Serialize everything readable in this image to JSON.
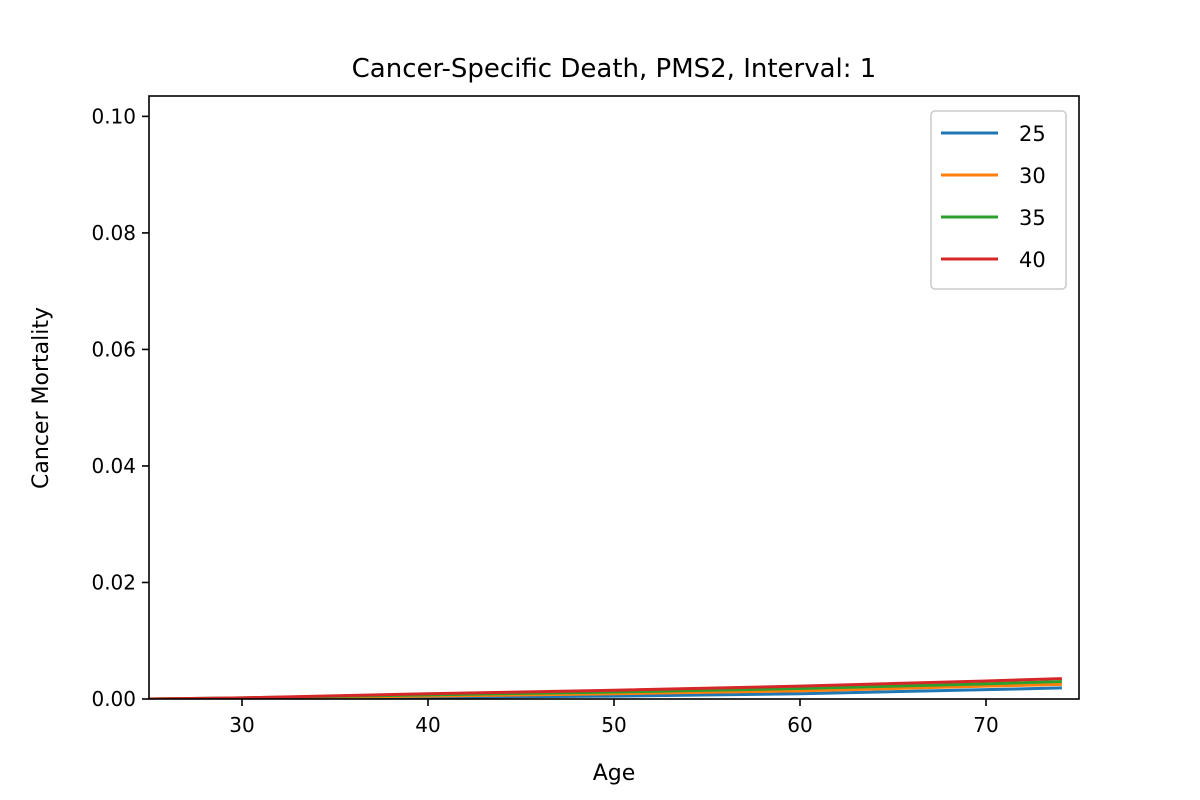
{
  "chart_data": {
    "type": "line",
    "title": "Cancer-Specific Death, PMS2, Interval: 1",
    "xlabel": "Age",
    "ylabel": "Cancer Mortality",
    "xlim": [
      25,
      75
    ],
    "ylim": [
      0,
      0.1035
    ],
    "xticks": [
      30,
      40,
      50,
      60,
      70
    ],
    "yticks": [
      0.0,
      0.02,
      0.04,
      0.06,
      0.08,
      0.1
    ],
    "ytick_labels": [
      "0.00",
      "0.02",
      "0.04",
      "0.06",
      "0.08",
      "0.10"
    ],
    "grid": false,
    "legend": "upper-right",
    "series": [
      {
        "name": "25",
        "color": "#1f77b4",
        "x": [
          25,
          30,
          40,
          50,
          60,
          70,
          74
        ],
        "y": [
          0.0,
          0.0001,
          0.0003,
          0.0005,
          0.0009,
          0.0016,
          0.0019
        ]
      },
      {
        "name": "30",
        "color": "#ff7f0e",
        "x": [
          25,
          30,
          40,
          50,
          60,
          70,
          74
        ],
        "y": [
          0.0,
          0.0001,
          0.0005,
          0.0009,
          0.0014,
          0.0022,
          0.0025
        ]
      },
      {
        "name": "35",
        "color": "#2ca02c",
        "x": [
          25,
          30,
          40,
          50,
          60,
          70,
          74
        ],
        "y": [
          0.0,
          0.0002,
          0.0007,
          0.0012,
          0.0018,
          0.0026,
          0.003
        ]
      },
      {
        "name": "40",
        "color": "#d62728",
        "x": [
          25,
          30,
          40,
          50,
          60,
          70,
          74
        ],
        "y": [
          0.0,
          0.0002,
          0.0009,
          0.0015,
          0.0022,
          0.0031,
          0.0035
        ]
      }
    ]
  }
}
